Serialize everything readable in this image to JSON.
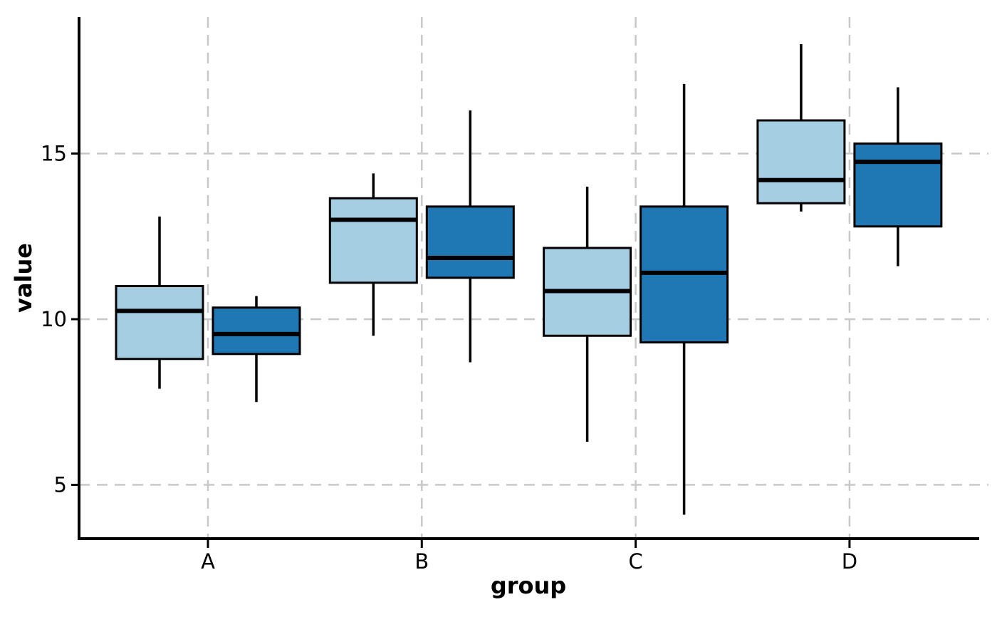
{
  "chart_data": {
    "type": "boxplot",
    "title": "",
    "xlabel": "group",
    "ylabel": "value",
    "categories": [
      "A",
      "B",
      "C",
      "D"
    ],
    "yticks": [
      5,
      10,
      15
    ],
    "ylim": [
      3.4,
      19.1
    ],
    "grid": "dashed light-gray horizontal lines at yticks and vertical lines at each category",
    "legend": "none",
    "series": [
      {
        "name": "light-blue",
        "fill": "#a6cee3",
        "boxes": [
          {
            "category": "A",
            "whisker_low": 7.9,
            "q1": 8.8,
            "median": 10.25,
            "q3": 11.0,
            "whisker_high": 13.1
          },
          {
            "category": "B",
            "whisker_low": 9.5,
            "q1": 11.1,
            "median": 13.0,
            "q3": 13.65,
            "whisker_high": 14.4
          },
          {
            "category": "C",
            "whisker_low": 6.3,
            "q1": 9.5,
            "median": 10.85,
            "q3": 12.15,
            "whisker_high": 14.0
          },
          {
            "category": "D",
            "whisker_low": 13.25,
            "q1": 13.5,
            "median": 14.2,
            "q3": 16.0,
            "whisker_high": 18.3
          }
        ]
      },
      {
        "name": "dark-blue",
        "fill": "#1f78b4",
        "boxes": [
          {
            "category": "A",
            "whisker_low": 7.5,
            "q1": 8.95,
            "median": 9.55,
            "q3": 10.35,
            "whisker_high": 10.7
          },
          {
            "category": "B",
            "whisker_low": 8.7,
            "q1": 11.25,
            "median": 11.85,
            "q3": 13.4,
            "whisker_high": 16.3
          },
          {
            "category": "C",
            "whisker_low": 4.1,
            "q1": 9.3,
            "median": 11.4,
            "q3": 13.4,
            "whisker_high": 17.1
          },
          {
            "category": "D",
            "whisker_low": 11.6,
            "q1": 12.8,
            "median": 14.75,
            "q3": 15.3,
            "whisker_high": 17.0
          }
        ]
      }
    ],
    "colors": {
      "background": "#ffffff",
      "grid": "#c8c8c8",
      "axis": "#000000",
      "box_border": "#000000",
      "median_line": "#000000",
      "whisker": "#000000"
    }
  }
}
